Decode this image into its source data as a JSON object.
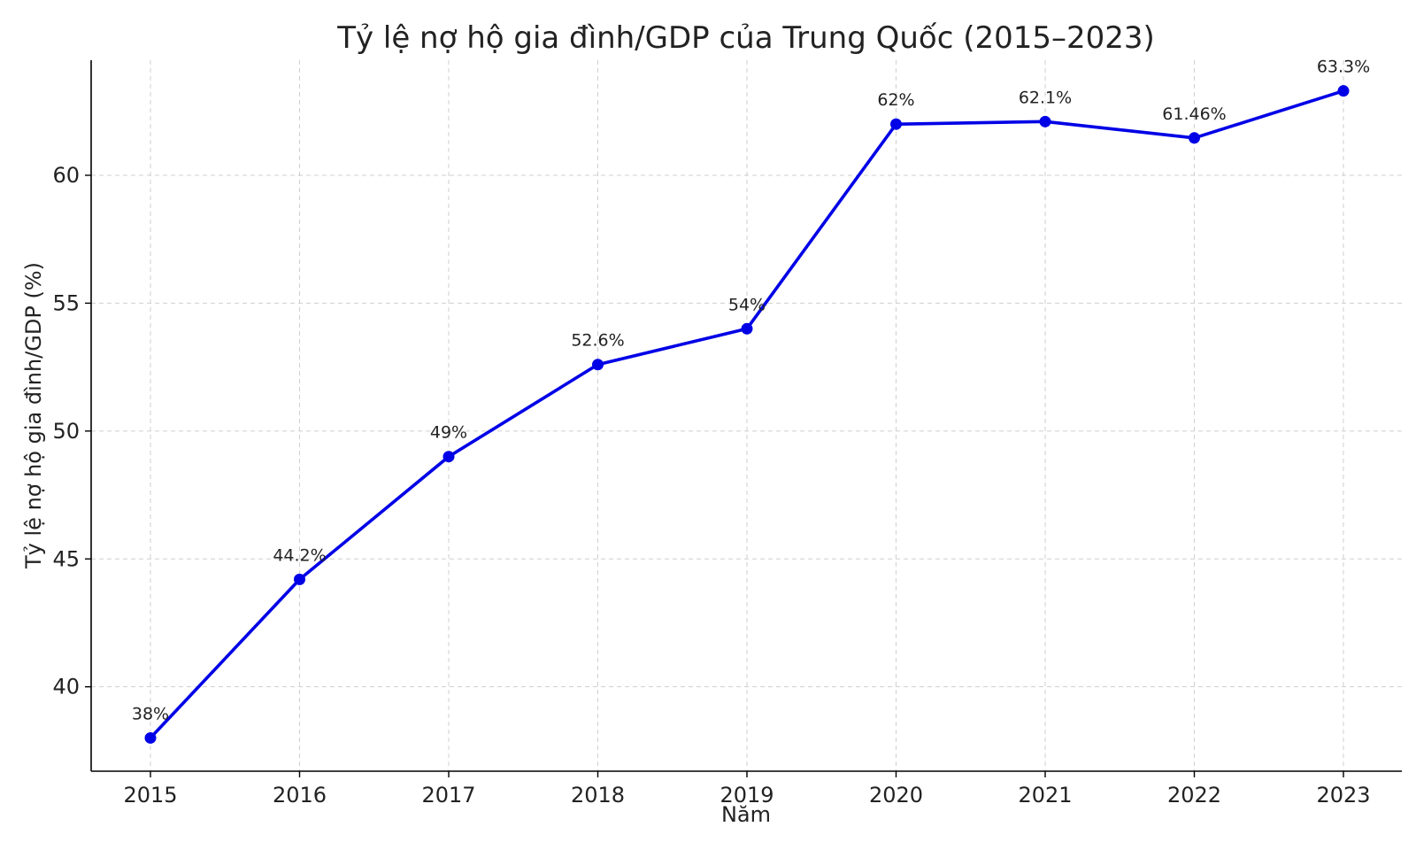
{
  "chart_data": {
    "type": "line",
    "title": "Tỷ lệ nợ hộ gia đình/GDP của Trung Quốc (2015–2023)",
    "xlabel": "Năm",
    "ylabel": "Tỷ lệ nợ hộ gia đình/GDP (%)",
    "x": [
      "2015",
      "2016",
      "2017",
      "2018",
      "2019",
      "2020",
      "2021",
      "2022",
      "2023"
    ],
    "series": [
      {
        "values": [
          38,
          44.2,
          49,
          52.6,
          54,
          62,
          62.1,
          61.46,
          63.3
        ],
        "data_labels": [
          "38%",
          "44.2%",
          "49%",
          "52.6%",
          "54%",
          "62%",
          "62.1%",
          "61.46%",
          "63.3%"
        ],
        "color": "#0000e6"
      }
    ],
    "ylim": [
      36.7,
      64.5
    ],
    "yticks": [
      "40",
      "45",
      "50",
      "55",
      "60"
    ],
    "grid": true,
    "legend": "none"
  }
}
